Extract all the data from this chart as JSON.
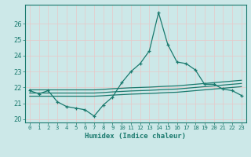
{
  "xlabel": "Humidex (Indice chaleur)",
  "bg_color": "#cce8e8",
  "line_color": "#1a7a6e",
  "grid_color": "#b8d8d8",
  "xlim": [
    -0.5,
    23.5
  ],
  "ylim": [
    19.8,
    27.2
  ],
  "xticks": [
    0,
    1,
    2,
    3,
    4,
    5,
    6,
    7,
    8,
    9,
    10,
    11,
    12,
    13,
    14,
    15,
    16,
    17,
    18,
    19,
    20,
    21,
    22,
    23
  ],
  "yticks": [
    20,
    21,
    22,
    23,
    24,
    25,
    26
  ],
  "x": [
    0,
    1,
    2,
    3,
    4,
    5,
    6,
    7,
    8,
    9,
    10,
    11,
    12,
    13,
    14,
    15,
    16,
    17,
    18,
    19,
    20,
    21,
    22,
    23
  ],
  "line_main": [
    21.8,
    21.6,
    21.8,
    21.1,
    20.8,
    20.7,
    20.6,
    20.2,
    20.9,
    21.4,
    22.3,
    23.0,
    23.5,
    24.3,
    26.7,
    24.7,
    23.6,
    23.5,
    23.1,
    22.2,
    22.2,
    21.9,
    21.8,
    21.5
  ],
  "line_top": [
    21.85,
    21.85,
    21.85,
    21.85,
    21.85,
    21.85,
    21.85,
    21.85,
    21.88,
    21.92,
    21.95,
    21.98,
    22.0,
    22.02,
    22.05,
    22.08,
    22.1,
    22.15,
    22.2,
    22.25,
    22.3,
    22.35,
    22.4,
    22.45
  ],
  "line_mid": [
    21.65,
    21.65,
    21.65,
    21.65,
    21.65,
    21.65,
    21.65,
    21.65,
    21.68,
    21.72,
    21.75,
    21.78,
    21.8,
    21.82,
    21.85,
    21.88,
    21.9,
    21.95,
    22.0,
    22.05,
    22.1,
    22.15,
    22.2,
    22.25
  ],
  "line_bot": [
    21.45,
    21.45,
    21.45,
    21.45,
    21.45,
    21.45,
    21.45,
    21.45,
    21.48,
    21.52,
    21.55,
    21.58,
    21.6,
    21.62,
    21.65,
    21.68,
    21.7,
    21.75,
    21.8,
    21.85,
    21.9,
    21.95,
    22.0,
    22.05
  ]
}
